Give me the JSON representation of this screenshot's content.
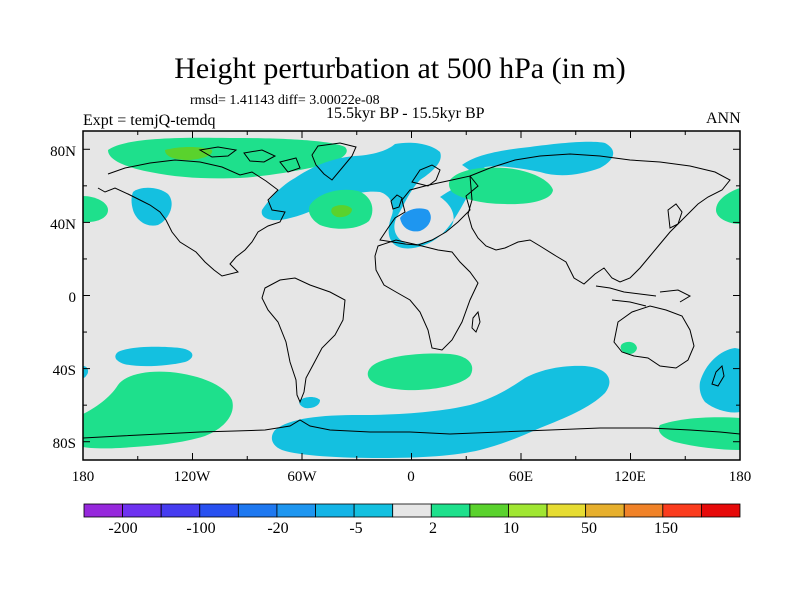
{
  "map": {
    "title": "Height perturbation at 500 hPa (in m)",
    "stats": "rmsd= 1.41143 diff= 3.00022e-08",
    "experiment": "Expt = temjQ-temdq",
    "period": "15.5kyr BP - 15.5kyr BP",
    "season": "ANN",
    "lat_labels": [
      "80N",
      "40N",
      "0",
      "40S",
      "80S"
    ],
    "lon_labels": [
      "180",
      "120W",
      "60W",
      "0",
      "60E",
      "120E",
      "180"
    ]
  },
  "colors": {
    "missing": "#e6e6e6",
    "neg_small": "#14c0e0",
    "pos_small": "#1ee08c",
    "pos_mid": "#5ad22d",
    "neg_mid": "#1e96f0",
    "coastline": "#000000"
  },
  "colorbar": {
    "colors": [
      "#9628dc",
      "#6e32f0",
      "#463cf0",
      "#2850f0",
      "#1e78f0",
      "#1e96f0",
      "#14b4e6",
      "#14c0e0",
      "#e6e6e6",
      "#1ee08c",
      "#5ad22d",
      "#a0e632",
      "#e6dc32",
      "#e6af2d",
      "#f08228",
      "#fa3c1e",
      "#e60a0a"
    ],
    "labels": [
      "-200",
      "-100",
      "-20",
      "-5",
      "2",
      "10",
      "50",
      "150"
    ]
  }
}
